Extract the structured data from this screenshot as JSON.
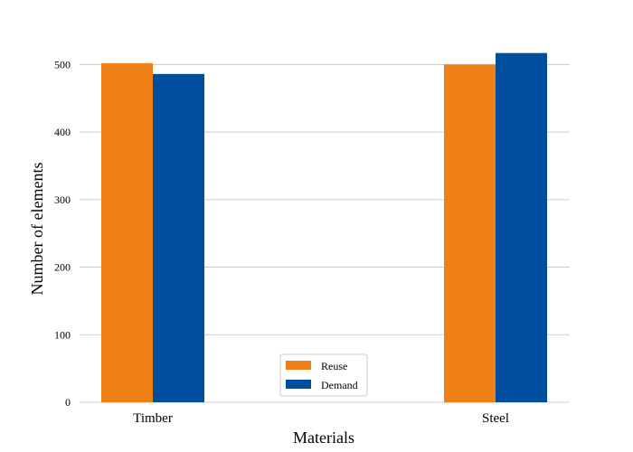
{
  "chart_data": {
    "type": "bar",
    "title": "",
    "xlabel": "Materials",
    "ylabel": "Number of elements",
    "categories": [
      "Timber",
      "Steel"
    ],
    "series": [
      {
        "name": "Reuse",
        "values": [
          502,
          500
        ],
        "color": "#ef8016"
      },
      {
        "name": "Demand",
        "values": [
          486,
          517
        ],
        "color": "#004f9e"
      }
    ],
    "ylim": [
      0,
      550
    ],
    "yticks": [
      0,
      100,
      200,
      300,
      400,
      500
    ],
    "grid": "horizontal",
    "legend_position": "bottom-center"
  }
}
